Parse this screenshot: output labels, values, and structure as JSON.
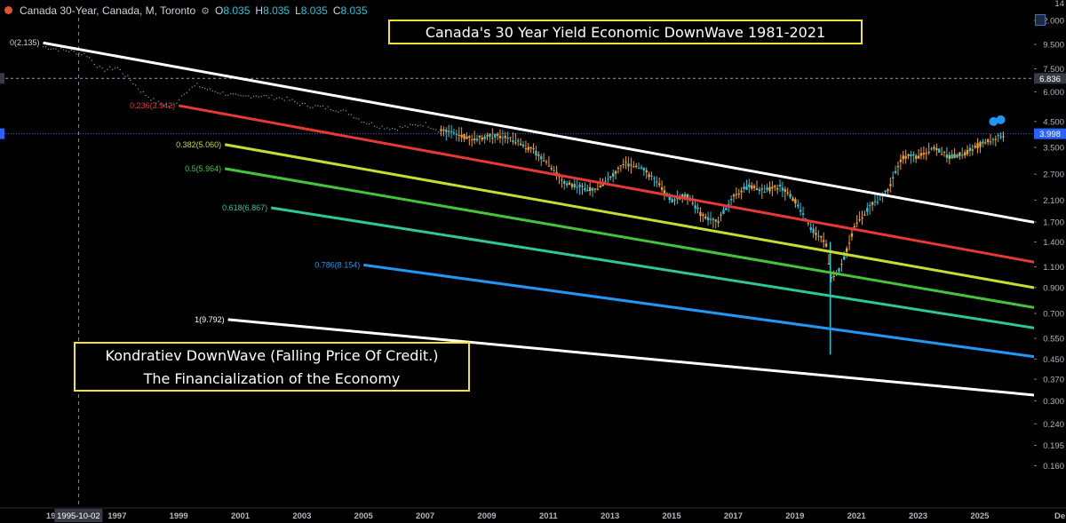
{
  "header": {
    "symbol": "Canada 30-Year, Canada, M, Toronto",
    "open_label": "O",
    "open": "8.035",
    "high_label": "H",
    "high": "8.035",
    "low_label": "L",
    "low": "8.035",
    "close_label": "C",
    "close": "8.035"
  },
  "annotations": {
    "title": "Canada's 30 Year Yield  Economic DownWave 1981-2021",
    "note_line1": "Kondratiev DownWave (Falling Price Of Credit.)",
    "note_line2": "The Financialization of the Economy"
  },
  "chart_data": {
    "type": "line",
    "scale": "log",
    "grid": false,
    "ylim": [
      0.14,
      14.0
    ],
    "xlim": [
      1993.2,
      2027.8
    ],
    "y_ticks": [
      "12.000",
      "9.500",
      "7.500",
      "6.000",
      "4.500",
      "3.500",
      "2.700",
      "2.100",
      "1.700",
      "1.400",
      "1.100",
      "0.900",
      "0.700",
      "0.550",
      "0.450",
      "0.370",
      "0.300",
      "0.240",
      "0.195",
      "0.160"
    ],
    "x_ticks": [
      "19",
      "1995-10-02",
      "1997",
      "1999",
      "2001",
      "2003",
      "2005",
      "2007",
      "2009",
      "2011",
      "2013",
      "2015",
      "2017",
      "2019",
      "2021",
      "2023",
      "2025",
      "De"
    ],
    "price_labels": [
      {
        "text": "6.836",
        "value": 6.836
      },
      {
        "text": "3.998",
        "value": 3.998
      }
    ],
    "top_label": "14",
    "crosshair_x": 1995.75,
    "series": [
      {
        "values_x": [
          1994.6,
          1995.0,
          1995.5,
          1996.0,
          1996.5,
          1997.0,
          1997.4,
          1997.8,
          1998.3,
          1998.8,
          1999.2,
          1999.6,
          2000.0,
          2000.5,
          2001.0,
          2001.5,
          2002.0,
          2002.5,
          2003.0,
          2003.5,
          2004.0,
          2004.5,
          2005.0,
          2005.5,
          2006.0,
          2006.5,
          2007.0,
          2007.5,
          2008.0,
          2008.5,
          2009.0,
          2009.5,
          2010.0,
          2010.5,
          2011.0,
          2011.5,
          2012.0,
          2012.5,
          2013.0,
          2013.5,
          2014.0,
          2014.5,
          2015.0,
          2015.5,
          2016.0,
          2016.5,
          2017.0,
          2017.5,
          2018.0,
          2018.5,
          2019.0,
          2019.5,
          2020.0,
          2020.2,
          2020.5,
          2021.0,
          2021.5,
          2022.0,
          2022.5,
          2023.0,
          2023.5,
          2024.0,
          2024.5,
          2025.0,
          2025.5,
          2025.8
        ],
        "values_y": [
          9.3,
          9.1,
          8.9,
          8.6,
          7.4,
          7.6,
          6.8,
          6.0,
          5.4,
          5.2,
          6.0,
          6.4,
          6.1,
          5.9,
          5.7,
          5.8,
          5.7,
          5.6,
          5.3,
          5.2,
          5.1,
          4.9,
          4.5,
          4.3,
          4.2,
          4.3,
          4.4,
          4.1,
          4.0,
          3.8,
          3.9,
          3.9,
          3.7,
          3.4,
          3.0,
          2.5,
          2.4,
          2.3,
          2.6,
          3.0,
          2.9,
          2.5,
          2.1,
          2.2,
          1.8,
          1.7,
          2.2,
          2.4,
          2.3,
          2.4,
          2.1,
          1.6,
          1.4,
          0.95,
          1.1,
          1.7,
          2.0,
          2.3,
          3.2,
          3.2,
          3.5,
          3.2,
          3.3,
          3.6,
          3.8,
          3.95
        ]
      }
    ],
    "lines": [
      {
        "name": "downtrend",
        "color": "#ffffff",
        "x1": 1994.6,
        "y1": 9.65,
        "x2": 2027.6,
        "y2": 1.62
      },
      {
        "label": "0.236(3.942)",
        "color": "#e53935",
        "x1": 1999.0,
        "y1": 5.25,
        "x2": 2027.6,
        "y2": 1.1
      },
      {
        "label": "0.382(5.060)",
        "color": "#c6dc32",
        "x1": 2000.5,
        "y1": 3.6,
        "x2": 2027.6,
        "y2": 0.86
      },
      {
        "label": "0.5(5.964)",
        "color": "#43c43a",
        "x1": 2000.5,
        "y1": 2.85,
        "x2": 2027.6,
        "y2": 0.71
      },
      {
        "label": "0.618(6.867)",
        "color": "#2ec79a",
        "x1": 2002.0,
        "y1": 1.95,
        "x2": 2027.6,
        "y2": 0.585
      },
      {
        "label": "0.786(8.154)",
        "color": "#2196f3",
        "x1": 2005.0,
        "y1": 1.12,
        "x2": 2027.6,
        "y2": 0.445
      },
      {
        "label": "1(9.792)",
        "color": "#ffffff",
        "x1": 2000.6,
        "y1": 0.66,
        "x2": 2027.6,
        "y2": 0.31
      }
    ],
    "level_labels": [
      {
        "text": "0(2.135)",
        "x": 1994.6,
        "y": 9.65,
        "color": "#d1d4dc"
      }
    ]
  }
}
